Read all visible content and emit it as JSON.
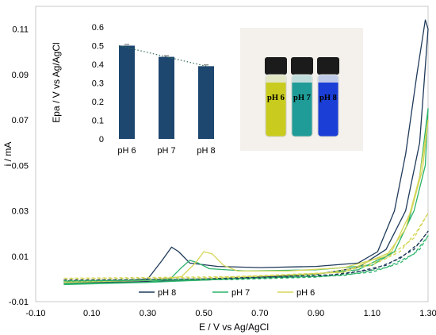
{
  "colors": {
    "ph8": "#1f3a5a",
    "ph7": "#2bb36a",
    "ph6": "#d6d65a",
    "bars": "#1e4770",
    "trend": "#2e6b55",
    "photo_bg": "#f4f1ec"
  },
  "chart_data": [
    {
      "type": "line",
      "xlabel": "E / V vs Ag/AgCl",
      "ylabel": "i / mA",
      "xlim": [
        -0.1,
        1.3
      ],
      "ylim": [
        -0.01,
        0.12
      ],
      "xticks": [
        "-0.10",
        "0.10",
        "0.30",
        "0.50",
        "0.70",
        "0.90",
        "1.10",
        "1.30"
      ],
      "xtick_values": [
        -0.1,
        0.1,
        0.3,
        0.5,
        0.7,
        0.9,
        1.1,
        1.3
      ],
      "yticks": [
        "-0.01",
        "0.01",
        "0.03",
        "0.05",
        "0.07",
        "0.09",
        "0.11"
      ],
      "ytick_values": [
        -0.01,
        0.01,
        0.03,
        0.05,
        0.07,
        0.09,
        0.11
      ],
      "legend_position": "bottom-center",
      "series": [
        {
          "name": "pH 8",
          "color_key": "ph8",
          "style": "solid",
          "points": [
            [
              0.0,
              -0.0015
            ],
            [
              0.2,
              -0.001
            ],
            [
              0.3,
              0.0
            ],
            [
              0.35,
              0.008
            ],
            [
              0.385,
              0.014
            ],
            [
              0.41,
              0.012
            ],
            [
              0.45,
              0.007
            ],
            [
              0.55,
              0.0055
            ],
            [
              0.7,
              0.005
            ],
            [
              0.9,
              0.0055
            ],
            [
              1.05,
              0.007
            ],
            [
              1.12,
              0.012
            ],
            [
              1.18,
              0.03
            ],
            [
              1.22,
              0.055
            ],
            [
              1.26,
              0.09
            ],
            [
              1.29,
              0.114
            ],
            [
              1.3,
              0.11
            ],
            [
              1.27,
              0.06
            ],
            [
              1.22,
              0.03
            ],
            [
              1.15,
              0.013
            ],
            [
              1.05,
              0.005
            ],
            [
              0.9,
              0.002
            ],
            [
              0.5,
              -0.0005
            ],
            [
              0.0,
              -0.002
            ]
          ]
        },
        {
          "name": "pH 7",
          "color_key": "ph7",
          "style": "solid",
          "points": [
            [
              0.0,
              -0.002
            ],
            [
              0.3,
              -0.0015
            ],
            [
              0.38,
              0.0
            ],
            [
              0.42,
              0.005
            ],
            [
              0.45,
              0.0082
            ],
            [
              0.48,
              0.007
            ],
            [
              0.52,
              0.0045
            ],
            [
              0.65,
              0.0035
            ],
            [
              0.9,
              0.004
            ],
            [
              1.1,
              0.006
            ],
            [
              1.18,
              0.012
            ],
            [
              1.23,
              0.025
            ],
            [
              1.27,
              0.045
            ],
            [
              1.3,
              0.075
            ],
            [
              1.29,
              0.05
            ],
            [
              1.25,
              0.03
            ],
            [
              1.18,
              0.012
            ],
            [
              1.05,
              0.004
            ],
            [
              0.8,
              0.001
            ],
            [
              0.3,
              -0.0015
            ],
            [
              0.0,
              -0.0025
            ]
          ]
        },
        {
          "name": "pH 6",
          "color_key": "ph6",
          "style": "solid",
          "points": [
            [
              0.0,
              -0.001
            ],
            [
              0.3,
              -0.0005
            ],
            [
              0.42,
              0.001
            ],
            [
              0.47,
              0.007
            ],
            [
              0.5,
              0.012
            ],
            [
              0.53,
              0.011
            ],
            [
              0.57,
              0.006
            ],
            [
              0.62,
              0.0035
            ],
            [
              0.8,
              0.0035
            ],
            [
              1.0,
              0.005
            ],
            [
              1.15,
              0.01
            ],
            [
              1.22,
              0.022
            ],
            [
              1.27,
              0.045
            ],
            [
              1.3,
              0.07
            ],
            [
              1.28,
              0.048
            ],
            [
              1.24,
              0.03
            ],
            [
              1.17,
              0.012
            ],
            [
              1.0,
              0.003
            ],
            [
              0.5,
              0.0
            ],
            [
              0.0,
              -0.0015
            ]
          ]
        },
        {
          "name": "",
          "color_key": "ph8",
          "style": "dashed",
          "points": [
            [
              0.0,
              -0.0005
            ],
            [
              0.6,
              0.0
            ],
            [
              0.9,
              0.001
            ],
            [
              1.1,
              0.004
            ],
            [
              1.2,
              0.009
            ],
            [
              1.27,
              0.016
            ],
            [
              1.3,
              0.021
            ],
            [
              1.25,
              0.013
            ],
            [
              1.15,
              0.006
            ],
            [
              1.0,
              0.002
            ],
            [
              0.5,
              0.0
            ],
            [
              0.0,
              -0.0008
            ]
          ]
        },
        {
          "name": "",
          "color_key": "ph7",
          "style": "dashed",
          "points": [
            [
              0.0,
              -0.0008
            ],
            [
              0.6,
              -0.0003
            ],
            [
              0.9,
              0.0008
            ],
            [
              1.1,
              0.003
            ],
            [
              1.2,
              0.007
            ],
            [
              1.27,
              0.013
            ],
            [
              1.3,
              0.019
            ],
            [
              1.25,
              0.011
            ],
            [
              1.15,
              0.005
            ],
            [
              1.0,
              0.0015
            ],
            [
              0.5,
              -0.0003
            ],
            [
              0.0,
              -0.001
            ]
          ]
        },
        {
          "name": "",
          "color_key": "ph6",
          "style": "dashed",
          "points": [
            [
              0.0,
              0.0003
            ],
            [
              0.6,
              0.001
            ],
            [
              0.9,
              0.002
            ],
            [
              1.1,
              0.006
            ],
            [
              1.2,
              0.012
            ],
            [
              1.26,
              0.021
            ],
            [
              1.3,
              0.029
            ],
            [
              1.25,
              0.018
            ],
            [
              1.15,
              0.009
            ],
            [
              1.0,
              0.003
            ],
            [
              0.5,
              0.0005
            ],
            [
              0.0,
              0.0
            ]
          ]
        }
      ],
      "legend": [
        "pH 8",
        "pH 7",
        "pH 6"
      ]
    },
    {
      "type": "bar",
      "categories": [
        "pH 6",
        "pH 7",
        "pH 8"
      ],
      "values": [
        0.5,
        0.44,
        0.39
      ],
      "ylabel": "Epa / V vs Ag/AgCl",
      "ylim": [
        0,
        0.6
      ],
      "yticks": [
        "0",
        "0.1",
        "0.2",
        "0.3",
        "0.4",
        "0.5",
        "0.6"
      ],
      "ytick_values": [
        0,
        0.1,
        0.2,
        0.3,
        0.4,
        0.5,
        0.6
      ],
      "trendline": "dotted"
    }
  ],
  "photo": {
    "vial_labels": [
      "pH 6",
      "pH 7",
      "pH 8"
    ],
    "vial_colors": [
      "#c9cc1e",
      "#1f9c98",
      "#1b3ed6"
    ]
  }
}
